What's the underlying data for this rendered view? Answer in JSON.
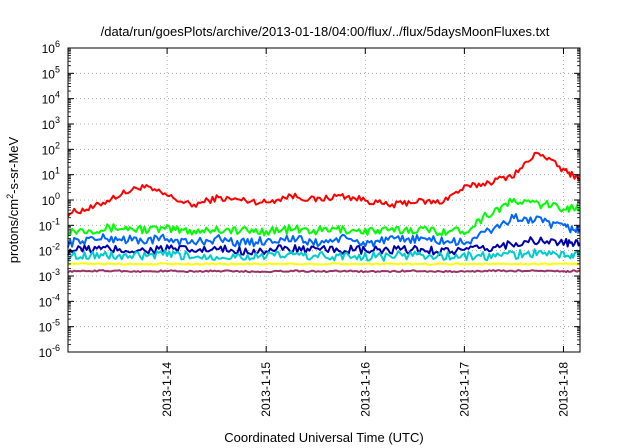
{
  "chart_data": {
    "type": "line",
    "title": "/data/run/goesPlots/archive/2013-01-18/04:00/flux/../flux/5daysMoonFluxes.txt",
    "xlabel": "Coordinated Universal Time (UTC)",
    "ylabel": {
      "prefix": "protons/cm",
      "sup": "2",
      "suffix": "-s-sr-MeV"
    },
    "x_tick_labels": [
      "2013-1-14",
      "2013-1-15",
      "2013-1-16",
      "2013-1-17",
      "2013-1-18"
    ],
    "x_tick_dates": [
      "2013-01-14",
      "2013-01-15",
      "2013-01-16",
      "2013-01-17",
      "2013-01-18"
    ],
    "xlim": [
      "2013-01-13T00:00",
      "2013-01-18T04:00"
    ],
    "y_scale": "log",
    "ylim": [
      1e-06,
      1000000.0
    ],
    "y_tick_labels": [
      {
        "base": "10",
        "exp": "6"
      },
      {
        "base": "10",
        "exp": "5"
      },
      {
        "base": "10",
        "exp": "4"
      },
      {
        "base": "10",
        "exp": "3"
      },
      {
        "base": "10",
        "exp": "2"
      },
      {
        "base": "10",
        "exp": "1"
      },
      {
        "base": "10",
        "exp": "0"
      },
      {
        "base": "10",
        "exp": "-1"
      },
      {
        "base": "10",
        "exp": "-2"
      },
      {
        "base": "10",
        "exp": "-3"
      },
      {
        "base": "10",
        "exp": "-4"
      },
      {
        "base": "10",
        "exp": "-5"
      },
      {
        "base": "10",
        "exp": "-6"
      }
    ],
    "grid": true,
    "legend": "none",
    "series": [
      {
        "color": "#ff0000",
        "x": [
          "2013-01-13T00:00",
          "2013-01-13T06:00",
          "2013-01-13T12:00",
          "2013-01-13T18:00",
          "2013-01-14T00:00",
          "2013-01-14T06:00",
          "2013-01-14T12:00",
          "2013-01-14T18:00",
          "2013-01-15T00:00",
          "2013-01-15T06:00",
          "2013-01-15T12:00",
          "2013-01-15T18:00",
          "2013-01-16T00:00",
          "2013-01-16T06:00",
          "2013-01-16T12:00",
          "2013-01-16T18:00",
          "2013-01-17T00:00",
          "2013-01-17T06:00",
          "2013-01-17T12:00",
          "2013-01-17T18:00",
          "2013-01-18T00:00",
          "2013-01-18T04:00"
        ],
        "y": [
          0.3,
          0.5,
          1.5,
          3.5,
          1.5,
          0.6,
          1.2,
          1.0,
          0.8,
          1.5,
          1.0,
          1.5,
          1.0,
          0.6,
          0.9,
          0.8,
          3.0,
          5.0,
          10,
          80,
          15,
          7
        ]
      },
      {
        "color": "#00ff00",
        "x": [
          "2013-01-13T00:00",
          "2013-01-13T06:00",
          "2013-01-13T12:00",
          "2013-01-13T18:00",
          "2013-01-14T00:00",
          "2013-01-14T06:00",
          "2013-01-14T12:00",
          "2013-01-14T18:00",
          "2013-01-15T00:00",
          "2013-01-15T06:00",
          "2013-01-15T12:00",
          "2013-01-15T18:00",
          "2013-01-16T00:00",
          "2013-01-16T06:00",
          "2013-01-16T12:00",
          "2013-01-16T18:00",
          "2013-01-17T00:00",
          "2013-01-17T06:00",
          "2013-01-17T12:00",
          "2013-01-17T18:00",
          "2013-01-18T00:00",
          "2013-01-18T04:00"
        ],
        "y": [
          0.06,
          0.07,
          0.08,
          0.07,
          0.07,
          0.06,
          0.07,
          0.06,
          0.06,
          0.07,
          0.06,
          0.07,
          0.06,
          0.06,
          0.07,
          0.06,
          0.06,
          0.3,
          0.9,
          0.7,
          0.5,
          0.5
        ]
      },
      {
        "color": "#0066ff",
        "x": [
          "2013-01-13T00:00",
          "2013-01-13T06:00",
          "2013-01-13T12:00",
          "2013-01-13T18:00",
          "2013-01-14T00:00",
          "2013-01-14T06:00",
          "2013-01-14T12:00",
          "2013-01-14T18:00",
          "2013-01-15T00:00",
          "2013-01-15T06:00",
          "2013-01-15T12:00",
          "2013-01-15T18:00",
          "2013-01-16T00:00",
          "2013-01-16T06:00",
          "2013-01-16T12:00",
          "2013-01-16T18:00",
          "2013-01-17T00:00",
          "2013-01-17T06:00",
          "2013-01-17T12:00",
          "2013-01-17T18:00",
          "2013-01-18T00:00",
          "2013-01-18T04:00"
        ],
        "y": [
          0.02,
          0.03,
          0.03,
          0.025,
          0.03,
          0.02,
          0.03,
          0.02,
          0.025,
          0.03,
          0.02,
          0.03,
          0.02,
          0.025,
          0.03,
          0.025,
          0.02,
          0.06,
          0.2,
          0.15,
          0.08,
          0.07
        ]
      },
      {
        "color": "#0000aa",
        "x": [
          "2013-01-13T00:00",
          "2013-01-13T06:00",
          "2013-01-13T12:00",
          "2013-01-13T18:00",
          "2013-01-14T00:00",
          "2013-01-14T06:00",
          "2013-01-14T12:00",
          "2013-01-14T18:00",
          "2013-01-15T00:00",
          "2013-01-15T06:00",
          "2013-01-15T12:00",
          "2013-01-15T18:00",
          "2013-01-16T00:00",
          "2013-01-16T06:00",
          "2013-01-16T12:00",
          "2013-01-16T18:00",
          "2013-01-17T00:00",
          "2013-01-17T06:00",
          "2013-01-17T12:00",
          "2013-01-17T18:00",
          "2013-01-18T00:00",
          "2013-01-18T04:00"
        ],
        "y": [
          0.01,
          0.012,
          0.011,
          0.01,
          0.012,
          0.01,
          0.011,
          0.01,
          0.01,
          0.012,
          0.01,
          0.011,
          0.01,
          0.01,
          0.011,
          0.01,
          0.01,
          0.012,
          0.02,
          0.025,
          0.02,
          0.018
        ]
      },
      {
        "color": "#00cccc",
        "x": [
          "2013-01-13T00:00",
          "2013-01-13T06:00",
          "2013-01-13T12:00",
          "2013-01-13T18:00",
          "2013-01-14T00:00",
          "2013-01-14T06:00",
          "2013-01-14T12:00",
          "2013-01-14T18:00",
          "2013-01-15T00:00",
          "2013-01-15T06:00",
          "2013-01-15T12:00",
          "2013-01-15T18:00",
          "2013-01-16T00:00",
          "2013-01-16T06:00",
          "2013-01-16T12:00",
          "2013-01-16T18:00",
          "2013-01-17T00:00",
          "2013-01-17T06:00",
          "2013-01-17T12:00",
          "2013-01-17T18:00",
          "2013-01-18T00:00",
          "2013-01-18T04:00"
        ],
        "y": [
          0.006,
          0.007,
          0.006,
          0.006,
          0.007,
          0.006,
          0.006,
          0.006,
          0.006,
          0.007,
          0.006,
          0.006,
          0.006,
          0.006,
          0.007,
          0.006,
          0.006,
          0.006,
          0.007,
          0.008,
          0.007,
          0.007
        ]
      },
      {
        "color": "#ffff00",
        "x": [
          "2013-01-13T00:00",
          "2013-01-13T06:00",
          "2013-01-13T12:00",
          "2013-01-13T18:00",
          "2013-01-14T00:00",
          "2013-01-14T06:00",
          "2013-01-14T12:00",
          "2013-01-14T18:00",
          "2013-01-15T00:00",
          "2013-01-15T06:00",
          "2013-01-15T12:00",
          "2013-01-15T18:00",
          "2013-01-16T00:00",
          "2013-01-16T06:00",
          "2013-01-16T12:00",
          "2013-01-16T18:00",
          "2013-01-17T00:00",
          "2013-01-17T06:00",
          "2013-01-17T12:00",
          "2013-01-17T18:00",
          "2013-01-18T00:00",
          "2013-01-18T04:00"
        ],
        "y": [
          0.003,
          0.003,
          0.003,
          0.003,
          0.003,
          0.003,
          0.003,
          0.003,
          0.003,
          0.003,
          0.003,
          0.003,
          0.003,
          0.003,
          0.003,
          0.003,
          0.003,
          0.003,
          0.003,
          0.003,
          0.003,
          0.003
        ]
      },
      {
        "color": "#993366",
        "x": [
          "2013-01-13T00:00",
          "2013-01-13T06:00",
          "2013-01-13T12:00",
          "2013-01-13T18:00",
          "2013-01-14T00:00",
          "2013-01-14T06:00",
          "2013-01-14T12:00",
          "2013-01-14T18:00",
          "2013-01-15T00:00",
          "2013-01-15T06:00",
          "2013-01-15T12:00",
          "2013-01-15T18:00",
          "2013-01-16T00:00",
          "2013-01-16T06:00",
          "2013-01-16T12:00",
          "2013-01-16T18:00",
          "2013-01-17T00:00",
          "2013-01-17T06:00",
          "2013-01-17T12:00",
          "2013-01-17T18:00",
          "2013-01-18T00:00",
          "2013-01-18T04:00"
        ],
        "y": [
          0.0015,
          0.0016,
          0.0016,
          0.0015,
          0.0016,
          0.0015,
          0.0016,
          0.0015,
          0.0015,
          0.0016,
          0.0015,
          0.0016,
          0.0015,
          0.0015,
          0.0016,
          0.0015,
          0.0015,
          0.0016,
          0.0016,
          0.0016,
          0.0015,
          0.0016
        ]
      }
    ]
  }
}
